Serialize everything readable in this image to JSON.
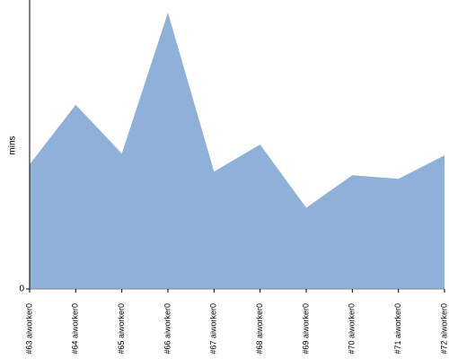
{
  "chart_data": {
    "type": "area",
    "y_label": "mins",
    "categories": [
      "#63 aiworker0",
      "#64 aiworker0",
      "#65 aiworker0",
      "#66 aiworker0",
      "#67 aiworker0",
      "#68 aiworker0",
      "#69 aiworker0",
      "#70 aiworker0",
      "#71 aiworker0",
      "#72 aiworker0"
    ],
    "values": [
      6.9,
      10.2,
      7.5,
      15.3,
      6.5,
      8.0,
      4.5,
      6.3,
      6.1,
      7.4
    ],
    "color": "#8fb0d9",
    "ylim": [
      0,
      16
    ],
    "yticks": [
      0
    ],
    "grid": false
  }
}
